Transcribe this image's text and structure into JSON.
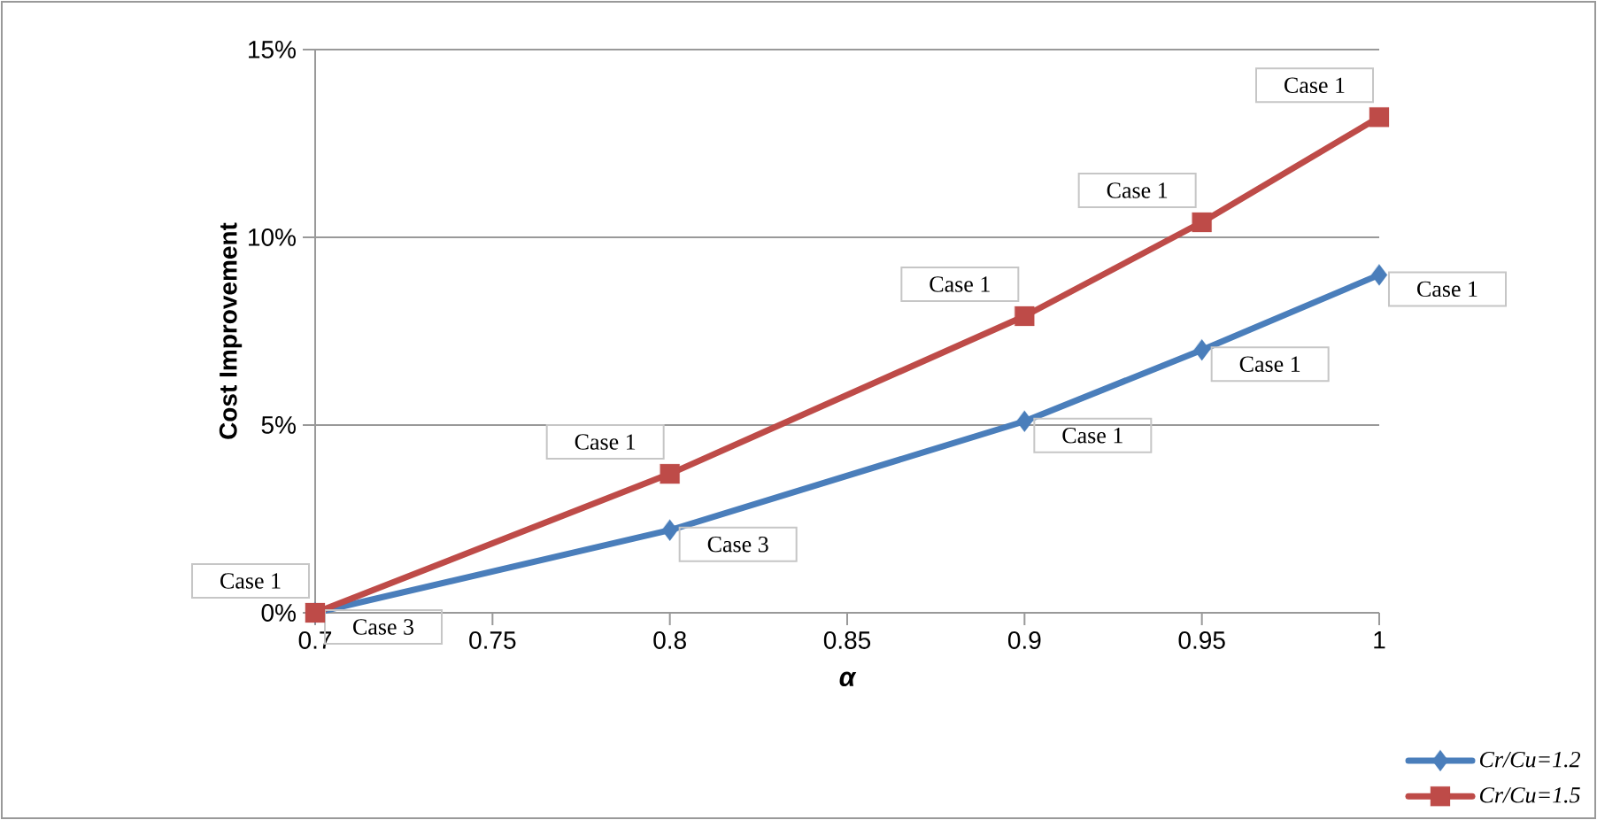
{
  "chart_data": {
    "type": "line",
    "xlabel": "α",
    "ylabel": "Cost Improvement",
    "x": [
      0.7,
      0.8,
      0.9,
      0.95,
      1
    ],
    "xlim": [
      0.7,
      1
    ],
    "xticks": [
      0.7,
      0.75,
      0.8,
      0.85,
      0.9,
      0.95,
      1
    ],
    "ylim": [
      0,
      15
    ],
    "yticks": [
      {
        "value": 0,
        "label": "0%"
      },
      {
        "value": 5,
        "label": "5%"
      },
      {
        "value": 10,
        "label": "10%"
      },
      {
        "value": 15,
        "label": "15%"
      }
    ],
    "grid": "y",
    "legend": "bottom right",
    "line_style": "solid",
    "series": [
      {
        "name": "Cr/Cu=1.2",
        "color": "#4a7ebb",
        "marker": "diamond",
        "values": [
          0,
          2.2,
          5.1,
          7.0,
          9.0
        ],
        "value_labels": [
          "Case 3",
          "Case 3",
          "Case 1",
          "Case 1",
          "Case 1"
        ]
      },
      {
        "name": "Cr/Cu=1.5",
        "color": "#be4b48",
        "marker": "square",
        "values": [
          0,
          3.7,
          7.9,
          10.4,
          13.2
        ],
        "value_labels": [
          "Case 1",
          "Case 1",
          "Case 1",
          "Case 1",
          "Case 1"
        ]
      }
    ]
  }
}
